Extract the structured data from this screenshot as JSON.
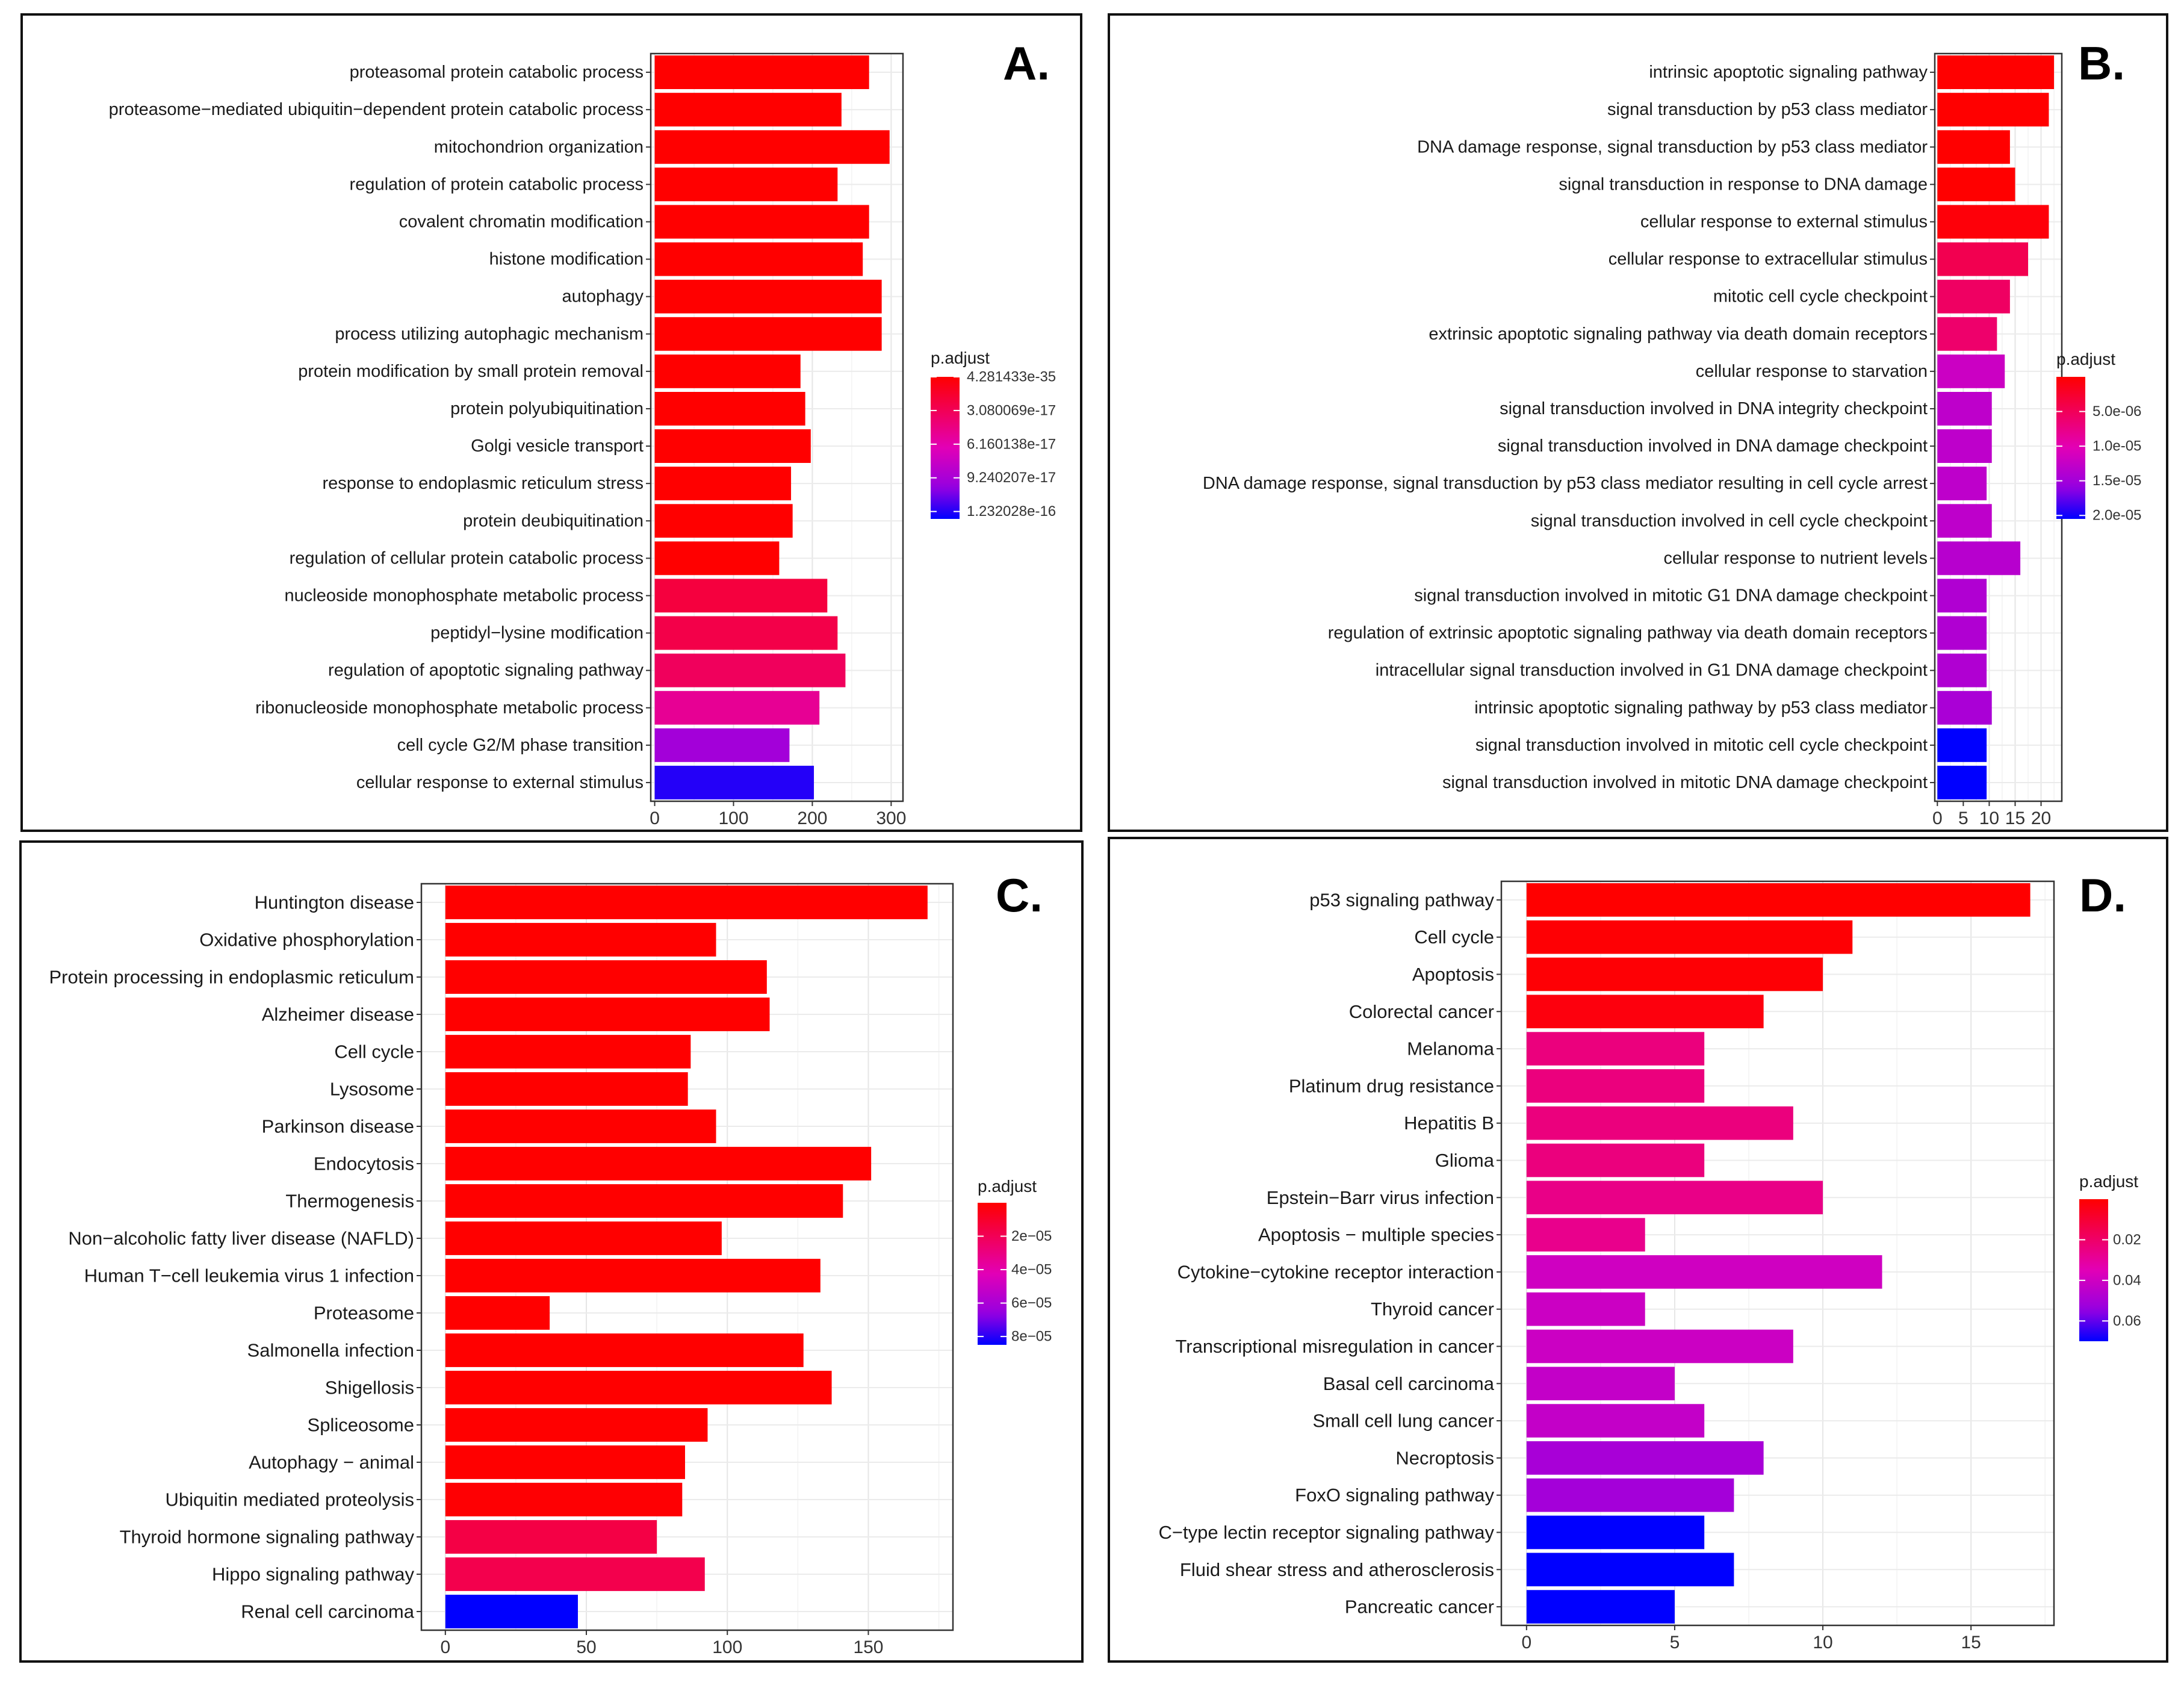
{
  "chart_data": [
    {
      "panel_label": "A.",
      "type": "bar",
      "orientation": "horizontal",
      "legend_title": "p.adjust",
      "legend_labels": [
        "4.281433e-35",
        "3.080069e-17",
        "6.160138e-17",
        "9.240207e-17",
        "1.232028e-16"
      ],
      "legend_tick_values": [
        4.281433e-35,
        3.080069e-17,
        6.160138e-17,
        9.240207e-17,
        1.232028e-16
      ],
      "legend_range": [
        0,
        1.3e-16
      ],
      "xlim": [
        -5,
        315
      ],
      "x_ticks": [
        0,
        100,
        200,
        300
      ],
      "x_tick_labels": [
        "0",
        "100",
        "200",
        "300"
      ],
      "categories": [
        "proteasomal protein catabolic process",
        "proteasome−mediated ubiquitin−dependent protein catabolic process",
        "mitochondrion organization",
        "regulation of protein catabolic process",
        "covalent chromatin modification",
        "histone modification",
        "autophagy",
        "process utilizing autophagic mechanism",
        "protein modification by small protein removal",
        "protein polyubiquitination",
        "Golgi vesicle transport",
        "response to endoplasmic reticulum stress",
        "protein deubiquitination",
        "regulation of cellular protein catabolic process",
        "nucleoside monophosphate metabolic process",
        "peptidyl−lysine modification",
        "regulation of apoptotic signaling pathway",
        "ribonucleoside monophosphate metabolic process",
        "cell cycle G2/M phase transition",
        "cellular response to external stimulus"
      ],
      "values": [
        272,
        237,
        298,
        232,
        272,
        264,
        288,
        288,
        185,
        191,
        198,
        173,
        175,
        158,
        219,
        232,
        242,
        209,
        171,
        202
      ],
      "p_adjust": [
        1e-30,
        1e-30,
        1e-30,
        1e-30,
        1e-30,
        1e-30,
        1e-30,
        1e-30,
        1e-30,
        1e-30,
        1e-30,
        1e-30,
        1e-30,
        1e-30,
        2.2e-17,
        2.6e-17,
        3.3e-17,
        5.3e-17,
        9.5e-17,
        1.232e-16
      ]
    },
    {
      "panel_label": "B.",
      "type": "bar",
      "orientation": "horizontal",
      "legend_title": "p.adjust",
      "legend_labels": [
        "5.0e-06",
        "1.0e-05",
        "1.5e-05",
        "2.0e-05"
      ],
      "legend_tick_values": [
        5e-06,
        1e-05,
        1.5e-05,
        2e-05
      ],
      "legend_range": [
        0,
        2.05e-05
      ],
      "xlim": [
        -0.5,
        24
      ],
      "x_ticks": [
        0,
        5,
        10,
        15,
        20
      ],
      "x_tick_labels": [
        "0",
        "5",
        "10",
        "15",
        "20"
      ],
      "categories": [
        "intrinsic apoptotic signaling pathway",
        "signal transduction by p53 class mediator",
        "DNA damage response, signal transduction by p53 class mediator",
        "signal transduction in response to DNA damage",
        "cellular response to external stimulus",
        "cellular response to extracellular stimulus",
        "mitotic cell cycle checkpoint",
        "extrinsic apoptotic signaling pathway via death domain receptors",
        "cellular response to starvation",
        "signal transduction involved in DNA integrity checkpoint",
        "signal transduction involved in DNA damage checkpoint",
        "DNA damage response, signal transduction by p53 class mediator resulting in cell cycle arrest",
        "signal transduction involved in cell cycle checkpoint",
        "cellular response to nutrient levels",
        "signal transduction involved in mitotic G1 DNA damage checkpoint",
        "regulation of extrinsic apoptotic signaling pathway via death domain receptors",
        "intracellular signal transduction involved in G1 DNA damage checkpoint",
        "intrinsic apoptotic signaling pathway by p53 class mediator",
        "signal transduction involved in mitotic cell cycle checkpoint",
        "signal transduction involved in mitotic DNA damage checkpoint"
      ],
      "values": [
        22.5,
        21.5,
        14,
        15,
        21.5,
        17.5,
        14,
        11.5,
        13,
        10.5,
        10.5,
        9.5,
        10.5,
        16,
        9.5,
        9.5,
        9.5,
        10.5,
        9.5,
        9.5
      ],
      "p_adjust": [
        1e-09,
        1e-09,
        1e-09,
        1e-09,
        5e-07,
        4.5e-06,
        5.5e-06,
        6e-06,
        1.2e-05,
        1.3e-05,
        1.3e-05,
        1.3e-05,
        1.3e-05,
        1.35e-05,
        1.4e-05,
        1.4e-05,
        1.4e-05,
        1.45e-05,
        2.05e-05,
        2.05e-05
      ]
    },
    {
      "panel_label": "C.",
      "type": "bar",
      "orientation": "horizontal",
      "legend_title": "p.adjust",
      "legend_labels": [
        "2e−05",
        "4e−05",
        "6e−05",
        "8e−05"
      ],
      "legend_tick_values": [
        2e-05,
        4e-05,
        6e-05,
        8e-05
      ],
      "legend_range": [
        0,
        8.5e-05
      ],
      "xlim": [
        -8.5,
        180
      ],
      "x_ticks": [
        0,
        50,
        100,
        150
      ],
      "x_tick_labels": [
        "0",
        "50",
        "100",
        "150"
      ],
      "categories": [
        "Huntington disease",
        "Oxidative phosphorylation",
        "Protein processing in endoplasmic reticulum",
        "Alzheimer disease",
        "Cell cycle",
        "Lysosome",
        "Parkinson disease",
        "Endocytosis",
        "Thermogenesis",
        "Non−alcoholic fatty liver disease (NAFLD)",
        "Human T−cell leukemia virus 1 infection",
        "Proteasome",
        "Salmonella infection",
        "Shigellosis",
        "Spliceosome",
        "Autophagy − animal",
        "Ubiquitin mediated proteolysis",
        "Thyroid hormone signaling pathway",
        "Hippo signaling pathway",
        "Renal cell carcinoma"
      ],
      "values": [
        171,
        96,
        114,
        115,
        87,
        86,
        96,
        151,
        141,
        98,
        133,
        37,
        127,
        137,
        93,
        85,
        84,
        75,
        92,
        47
      ],
      "p_adjust": [
        1e-10,
        1e-10,
        1e-10,
        1e-10,
        1e-10,
        1e-10,
        1e-10,
        1e-10,
        1e-10,
        1e-10,
        1e-10,
        1e-10,
        1e-10,
        1e-10,
        1e-10,
        1e-10,
        8e-07,
        1.6e-05,
        1.8e-05,
        8.5e-05
      ]
    },
    {
      "panel_label": "D.",
      "type": "bar",
      "orientation": "horizontal",
      "legend_title": "p.adjust",
      "legend_labels": [
        "0.02",
        "0.04",
        "0.06"
      ],
      "legend_tick_values": [
        0.02,
        0.04,
        0.06
      ],
      "legend_range": [
        0,
        0.07
      ],
      "xlim": [
        -0.85,
        17.8
      ],
      "x_ticks": [
        0,
        5,
        10,
        15
      ],
      "x_tick_labels": [
        "0",
        "5",
        "10",
        "15"
      ],
      "categories": [
        "p53 signaling pathway",
        "Cell cycle",
        "Apoptosis",
        "Colorectal cancer",
        "Melanoma",
        "Platinum drug resistance",
        "Hepatitis B",
        "Glioma",
        "Epstein−Barr virus infection",
        "Apoptosis − multiple species",
        "Cytokine−cytokine receptor interaction",
        "Thyroid cancer",
        "Transcriptional misregulation in cancer",
        "Basal cell carcinoma",
        "Small cell lung cancer",
        "Necroptosis",
        "FoxO signaling pathway",
        "C−type lectin receptor signaling pathway",
        "Fluid shear stress and atherosclerosis",
        "Pancreatic cancer"
      ],
      "values": [
        17,
        11,
        10,
        8,
        6,
        6,
        9,
        6,
        10,
        4,
        12,
        4,
        9,
        5,
        6,
        8,
        7,
        6,
        7,
        5
      ],
      "p_adjust": [
        1e-06,
        0.0008,
        0.001,
        0.0025,
        0.024,
        0.024,
        0.024,
        0.024,
        0.026,
        0.027,
        0.04,
        0.041,
        0.041,
        0.043,
        0.043,
        0.05,
        0.051,
        0.07,
        0.07,
        0.07
      ]
    }
  ]
}
